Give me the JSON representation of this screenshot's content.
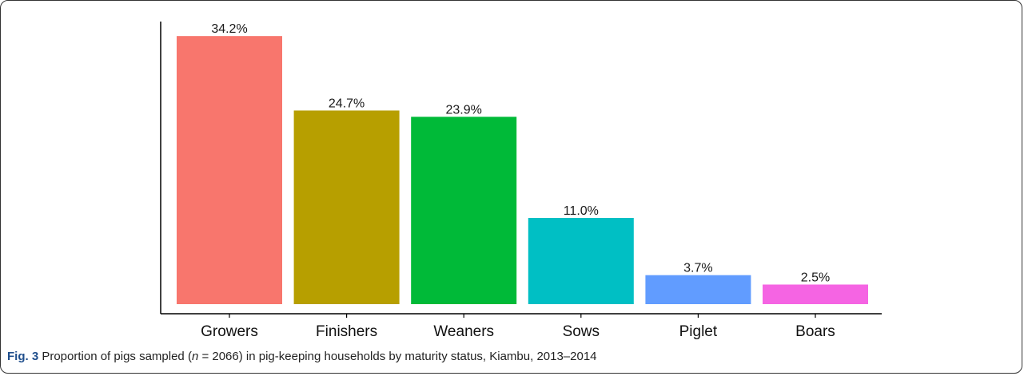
{
  "chart_data": {
    "type": "bar",
    "categories": [
      "Growers",
      "Finishers",
      "Weaners",
      "Sows",
      "Piglet",
      "Boars"
    ],
    "values": [
      34.2,
      24.7,
      23.9,
      11.0,
      3.7,
      2.5
    ],
    "data_labels": [
      "34.2%",
      "24.7%",
      "23.9%",
      "11.0%",
      "3.7%",
      "2.5%"
    ],
    "colors": [
      "#F8766D",
      "#B79F00",
      "#00BA38",
      "#00BFC4",
      "#619CFF",
      "#F564E3"
    ],
    "title": "",
    "xlabel": "",
    "ylabel": "",
    "ylim": [
      0,
      35
    ],
    "grid": false,
    "legend": "none"
  },
  "caption": {
    "label": "Fig. 3",
    "text_before_n": " Proportion of pigs sampled (",
    "n_symbol": "n",
    "text_after_n": " = 2066) in pig-keeping households by maturity status, Kiambu, 2013–2014"
  }
}
